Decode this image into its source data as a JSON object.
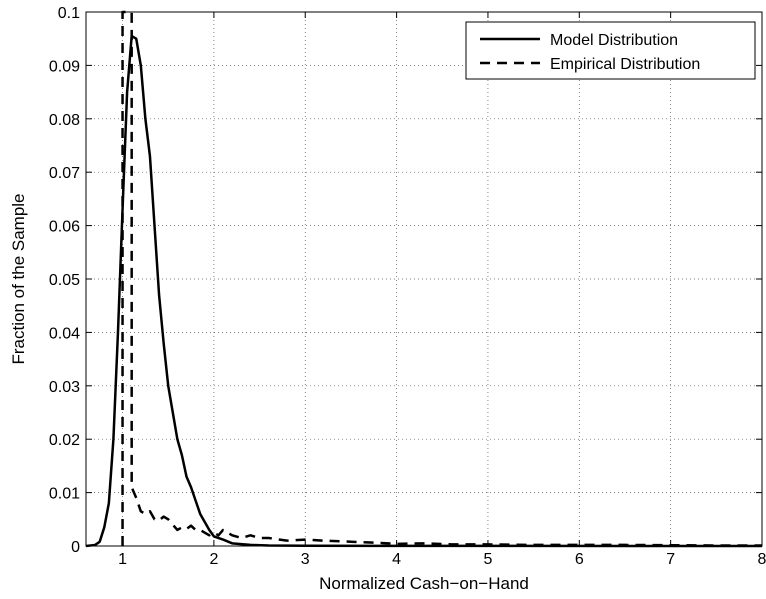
{
  "chart_data": {
    "type": "line",
    "title": "",
    "xlabel": "Normalized Cash−on−Hand",
    "ylabel": "Fraction of the Sample",
    "xlim": [
      0.6,
      8
    ],
    "ylim": [
      0,
      0.1
    ],
    "xticks": [
      1,
      2,
      3,
      4,
      5,
      6,
      7,
      8
    ],
    "xtick_labels": [
      "1",
      "2",
      "3",
      "4",
      "5",
      "6",
      "7",
      "8"
    ],
    "yticks": [
      0,
      0.01,
      0.02,
      0.03,
      0.04,
      0.05,
      0.06,
      0.07,
      0.08,
      0.09,
      0.1
    ],
    "ytick_labels": [
      "0",
      "0.01",
      "0.02",
      "0.03",
      "0.04",
      "0.05",
      "0.06",
      "0.07",
      "0.08",
      "0.09",
      "0.1"
    ],
    "grid": true,
    "legend_position": "top-right",
    "series": [
      {
        "name": "Model Distribution",
        "style": "solid",
        "color": "#000000",
        "points": [
          [
            0.6,
            0
          ],
          [
            0.7,
            0.0002
          ],
          [
            0.75,
            0.0008
          ],
          [
            0.8,
            0.0035
          ],
          [
            0.85,
            0.008
          ],
          [
            0.9,
            0.02
          ],
          [
            0.95,
            0.04
          ],
          [
            1.0,
            0.063
          ],
          [
            1.05,
            0.085
          ],
          [
            1.1,
            0.0955
          ],
          [
            1.15,
            0.095
          ],
          [
            1.2,
            0.09
          ],
          [
            1.25,
            0.08
          ],
          [
            1.3,
            0.073
          ],
          [
            1.35,
            0.06
          ],
          [
            1.4,
            0.047
          ],
          [
            1.45,
            0.038
          ],
          [
            1.5,
            0.03
          ],
          [
            1.55,
            0.025
          ],
          [
            1.6,
            0.02
          ],
          [
            1.65,
            0.017
          ],
          [
            1.7,
            0.013
          ],
          [
            1.75,
            0.011
          ],
          [
            1.8,
            0.0085
          ],
          [
            1.85,
            0.006
          ],
          [
            1.9,
            0.0045
          ],
          [
            1.95,
            0.003
          ],
          [
            2.0,
            0.0018
          ],
          [
            2.1,
            0.0012
          ],
          [
            2.2,
            0.0005
          ],
          [
            2.4,
            0.0002
          ],
          [
            2.6,
            0.0001
          ],
          [
            3.0,
            5e-05
          ],
          [
            4.0,
            2e-05
          ],
          [
            8.0,
            0
          ]
        ]
      },
      {
        "name": "Empirical Distribution",
        "style": "dashed",
        "color": "#000000",
        "points": [
          [
            1.0,
            0
          ],
          [
            1.0,
            0.1
          ],
          [
            1.04,
            0.1
          ],
          [
            1.08,
            0.1
          ],
          [
            1.1,
            0.1
          ],
          [
            1.1,
            0.011
          ],
          [
            1.15,
            0.009
          ],
          [
            1.2,
            0.0065
          ],
          [
            1.25,
            0.006
          ],
          [
            1.3,
            0.0065
          ],
          [
            1.35,
            0.005
          ],
          [
            1.4,
            0.0048
          ],
          [
            1.45,
            0.0055
          ],
          [
            1.5,
            0.005
          ],
          [
            1.55,
            0.004
          ],
          [
            1.6,
            0.003
          ],
          [
            1.65,
            0.0035
          ],
          [
            1.7,
            0.0032
          ],
          [
            1.75,
            0.0038
          ],
          [
            1.8,
            0.003
          ],
          [
            1.85,
            0.003
          ],
          [
            1.9,
            0.0025
          ],
          [
            1.95,
            0.002
          ],
          [
            2.0,
            0.0025
          ],
          [
            2.05,
            0.002
          ],
          [
            2.1,
            0.003
          ],
          [
            2.2,
            0.002
          ],
          [
            2.3,
            0.0015
          ],
          [
            2.4,
            0.002
          ],
          [
            2.5,
            0.0015
          ],
          [
            2.6,
            0.0015
          ],
          [
            2.8,
            0.001
          ],
          [
            3.0,
            0.0012
          ],
          [
            3.2,
            0.001
          ],
          [
            3.5,
            0.0008
          ],
          [
            3.8,
            0.0006
          ],
          [
            4.0,
            0.0004
          ],
          [
            4.3,
            0.0005
          ],
          [
            4.6,
            0.0003
          ],
          [
            5.0,
            0.0003
          ],
          [
            5.5,
            0.0002
          ],
          [
            6.0,
            0.0002
          ],
          [
            6.5,
            0.0002
          ],
          [
            7.0,
            0.00015
          ],
          [
            7.5,
            0.0001
          ],
          [
            8.0,
            0.0001
          ]
        ]
      }
    ]
  }
}
